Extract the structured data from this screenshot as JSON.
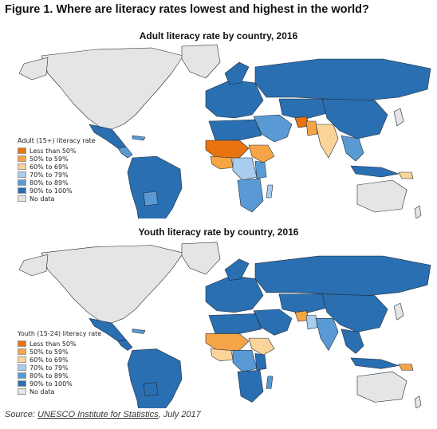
{
  "figure_title": "Figure 1. Where are literacy rates lowest and highest in the world?",
  "colors": {
    "less_than_50": "#e8730f",
    "r50_59": "#f6a546",
    "r60_69": "#fbd49a",
    "r70_79": "#a9cdee",
    "r80_89": "#5a9ad4",
    "r90_100": "#2a6fb1",
    "no_data": "#e5e5e5",
    "ocean": "#ffffff",
    "border": "#1f2a36"
  },
  "maps": [
    {
      "title": "Adult literacy rate by country, 2016",
      "legend_title": "Adult (15+) literacy rate",
      "legend_items": [
        {
          "label": "Less than 50%",
          "color": "#e8730f"
        },
        {
          "label": "50% to 59%",
          "color": "#f6a546"
        },
        {
          "label": "60% to 69%",
          "color": "#fbd49a"
        },
        {
          "label": "70% to 79%",
          "color": "#a9cdee"
        },
        {
          "label": "80% to 89%",
          "color": "#5a9ad4"
        },
        {
          "label": "90% to 100%",
          "color": "#2a6fb1"
        },
        {
          "label": "No data",
          "color": "#e5e5e5"
        }
      ]
    },
    {
      "title": "Youth literacy rate by country, 2016",
      "legend_title": "Youth (15-24) literacy rate",
      "legend_items": [
        {
          "label": "Less than 50%",
          "color": "#e8730f"
        },
        {
          "label": "50% to 59%",
          "color": "#f6a546"
        },
        {
          "label": "60% to 69%",
          "color": "#fbd49a"
        },
        {
          "label": "70% to 79%",
          "color": "#a9cdee"
        },
        {
          "label": "80% to 89%",
          "color": "#5a9ad4"
        },
        {
          "label": "90% to 100%",
          "color": "#2a6fb1"
        },
        {
          "label": "No data",
          "color": "#e5e5e5"
        }
      ]
    }
  ],
  "source": {
    "prefix": "Source: ",
    "link_text": "UNESCO Institute for Statistics",
    "suffix": ", July 2017"
  }
}
